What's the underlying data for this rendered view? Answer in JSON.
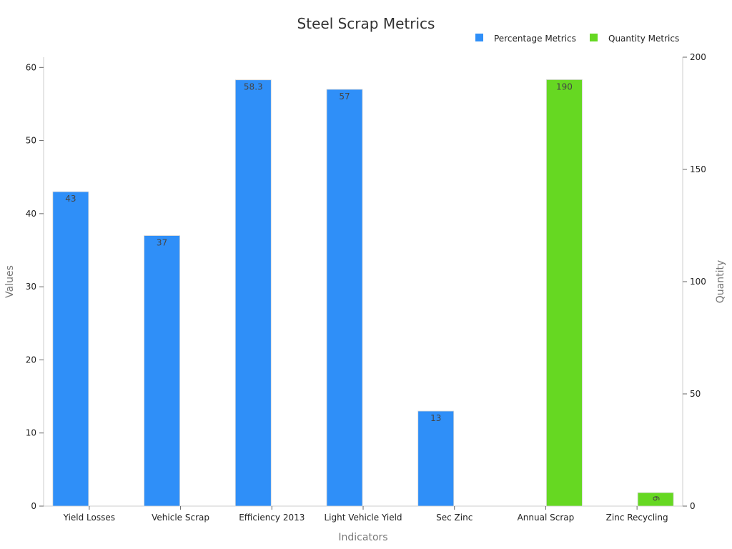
{
  "chart_data": {
    "type": "bar",
    "title": "Steel Scrap Metrics",
    "xlabel": "Indicators",
    "ylabel": "Values",
    "y2label": "Quantity",
    "categories": [
      "Yield Losses",
      "Vehicle Scrap",
      "Efficiency 2013",
      "Light Vehicle Yield",
      "Sec Zinc",
      "Annual Scrap",
      "Zinc Recycling"
    ],
    "series": [
      {
        "name": "Percentage Metrics",
        "axis": "left",
        "color": "#2f8ff8",
        "values": [
          43,
          37,
          58.3,
          57,
          13,
          null,
          null
        ],
        "labels": [
          "43",
          "37",
          "58.3",
          "57",
          "13",
          "",
          ""
        ]
      },
      {
        "name": "Quantity Metrics",
        "axis": "right",
        "color": "#66d822",
        "values": [
          null,
          null,
          null,
          null,
          null,
          190,
          6
        ],
        "labels": [
          "",
          "",
          "",
          "",
          "",
          "190",
          "6"
        ]
      }
    ],
    "ylim": [
      0,
      61.4
    ],
    "yticks": [
      0,
      10,
      20,
      30,
      40,
      50,
      60
    ],
    "y2lim": [
      0,
      200
    ],
    "y2ticks": [
      0,
      50,
      100,
      150,
      200
    ],
    "legend_position": "top-right",
    "grid": false
  }
}
